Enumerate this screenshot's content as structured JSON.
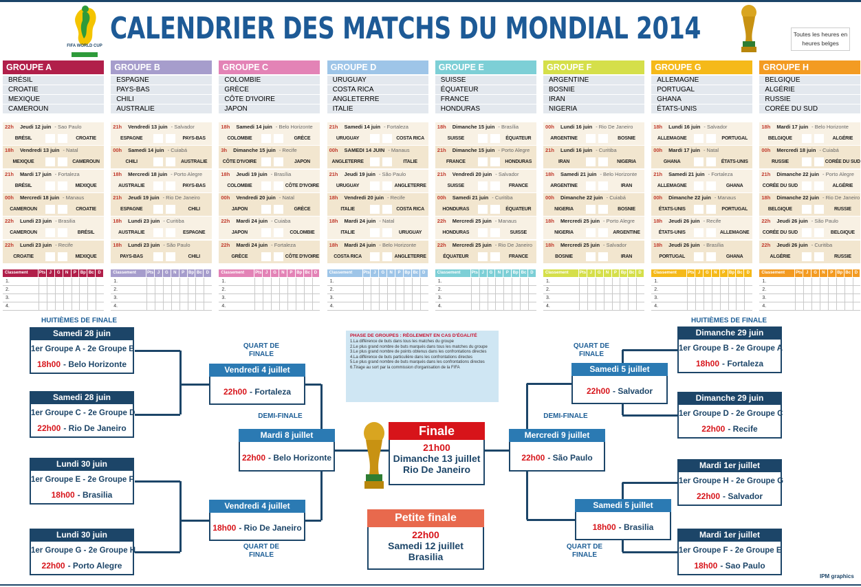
{
  "header": {
    "logo": "FIFA WORLD CUP",
    "title": "CALENDRIER DES MATCHS DU MONDIAL 2014",
    "note": "Toutes les heures en heures belges"
  },
  "standings_header": [
    "Classement",
    "Pts",
    "J",
    "G",
    "N",
    "P",
    "Bp",
    "Bc",
    "D"
  ],
  "ranks": [
    "1.",
    "2.",
    "3.",
    "4."
  ],
  "groups": [
    {
      "name": "GROUPE A",
      "color": "#b11f4a",
      "teams": [
        "BRÉSIL",
        "CROATIE",
        "MEXIQUE",
        "CAMEROUN"
      ],
      "matches": [
        {
          "time": "22h",
          "date": "Jeudi 12 juin",
          "venue": "- Sao Paulo",
          "home": "BRÉSIL",
          "away": "CROATIE"
        },
        {
          "time": "18h",
          "date": "Vendredi 13 juin",
          "venue": "- Natal",
          "home": "MEXIQUE",
          "away": "CAMEROUN"
        },
        {
          "time": "21h",
          "date": "Mardi 17 juin",
          "venue": "- Fortaleza",
          "home": "BRÉSIL",
          "away": "MEXIQUE"
        },
        {
          "time": "00h",
          "date": "Mercredi 18 juin",
          "venue": "- Manaus",
          "home": "CAMEROUN",
          "away": "CROATIE"
        },
        {
          "time": "22h",
          "date": "Lundi 23 juin",
          "venue": "- Brasilia",
          "home": "CAMEROUN",
          "away": "BRÉSIL"
        },
        {
          "time": "22h",
          "date": "Lundi 23 juin",
          "venue": "- Recife",
          "home": "CROATIE",
          "away": "MEXIQUE"
        }
      ]
    },
    {
      "name": "GROUPE B",
      "color": "#a69dcc",
      "teams": [
        "ESPAGNE",
        "PAYS-BAS",
        "CHILI",
        "AUSTRALIE"
      ],
      "matches": [
        {
          "time": "21h",
          "date": "Vendredi 13 juin",
          "venue": "- Salvador",
          "home": "ESPAGNE",
          "away": "PAYS-BAS"
        },
        {
          "time": "00h",
          "date": "Samedi 14 juin",
          "venue": "- Cuiabá",
          "home": "CHILI",
          "away": "AUSTRALIE"
        },
        {
          "time": "18h",
          "date": "Mercredi 18 juin",
          "venue": "- Porto Alegre",
          "home": "AUSTRALIE",
          "away": "PAYS-BAS"
        },
        {
          "time": "21h",
          "date": "Jeudi 19 juin",
          "venue": "- Rio De Janeiro",
          "home": "ESPAGNE",
          "away": "CHILI"
        },
        {
          "time": "18h",
          "date": "Lundi 23 juin",
          "venue": "- Curitiba",
          "home": "AUSTRALIE",
          "away": "ESPAGNE"
        },
        {
          "time": "18h",
          "date": "Lundi 23 juin",
          "venue": "- São Paulo",
          "home": "PAYS-BAS",
          "away": "CHILI"
        }
      ]
    },
    {
      "name": "GROUPE C",
      "color": "#e383b6",
      "teams": [
        "COLOMBIE",
        "GRÈCE",
        "CÔTE D'IVOIRE",
        "JAPON"
      ],
      "matches": [
        {
          "time": "18h",
          "date": "Samedi 14 juin",
          "venue": "- Belo Horizonte",
          "home": "COLOMBIE",
          "away": "GRÈCE"
        },
        {
          "time": "3h",
          "date": "Dimanche 15 juin",
          "venue": "- Recife",
          "home": "CÔTE D'IVOIRE",
          "away": "JAPON"
        },
        {
          "time": "18h",
          "date": "Jeudi 19 juin",
          "venue": "- Brasília",
          "home": "COLOMBIE",
          "away": "CÔTE D'IVOIRE"
        },
        {
          "time": "00h",
          "date": "Vendredi 20 juin",
          "venue": "- Natal",
          "home": "JAPON",
          "away": "GRÈCE"
        },
        {
          "time": "22h",
          "date": "Mardi 24 juin",
          "venue": "- Cuiaba",
          "home": "JAPON",
          "away": "COLOMBIE"
        },
        {
          "time": "22h",
          "date": "Mardi 24 juin",
          "venue": "- Fortaleza",
          "home": "GRÈCE",
          "away": "CÔTE D'IVOIRE"
        }
      ]
    },
    {
      "name": "GROUPE D",
      "color": "#9ec5e8",
      "teams": [
        "URUGUAY",
        "COSTA RICA",
        "ANGLETERRE",
        "ITALIE"
      ],
      "matches": [
        {
          "time": "21h",
          "date": "Samedi 14 juin",
          "venue": "- Fortaleza",
          "home": "URUGUAY",
          "away": "COSTA RICA"
        },
        {
          "time": "00h",
          "date": "SAMEDI 14 JUIN",
          "venue": "- Manaus",
          "home": "ANGLETERRE",
          "away": "ITALIE"
        },
        {
          "time": "21h",
          "date": "Jeudi 19 juin",
          "venue": "- São Paulo",
          "home": "URUGUAY",
          "away": "ANGLETERRE"
        },
        {
          "time": "18h",
          "date": "Vendredi 20 juin",
          "venue": "- Recife",
          "home": "ITALIE",
          "away": "COSTA RICA"
        },
        {
          "time": "18h",
          "date": "Mardi 24 juin",
          "venue": "- Natal",
          "home": "ITALIE",
          "away": "URUGUAY"
        },
        {
          "time": "18h",
          "date": "Mardi 24 juin",
          "venue": "- Belo Horizonte",
          "home": "COSTA RICA",
          "away": "ANGLETERRE"
        }
      ]
    },
    {
      "name": "GROUPE E",
      "color": "#7dcfd6",
      "teams": [
        "SUISSE",
        "ÉQUATEUR",
        "FRANCE",
        "HONDURAS"
      ],
      "matches": [
        {
          "time": "18h",
          "date": "Dimanche 15 juin",
          "venue": "- Brasília",
          "home": "SUISSE",
          "away": "ÉQUATEUR"
        },
        {
          "time": "21h",
          "date": "Dimanche 15 juin",
          "venue": "- Porto Alegre",
          "home": "FRANCE",
          "away": "HONDURAS"
        },
        {
          "time": "21h",
          "date": "Vendredi 20 juin",
          "venue": "- Salvador",
          "home": "SUISSE",
          "away": "FRANCE"
        },
        {
          "time": "00h",
          "date": "Samedi 21 juin",
          "venue": "- Curitiba",
          "home": "HONDURAS",
          "away": "ÉQUATEUR"
        },
        {
          "time": "22h",
          "date": "Mercredi 25 juin",
          "venue": "- Manaus",
          "home": "HONDURAS",
          "away": "SUISSE"
        },
        {
          "time": "22h",
          "date": "Mercredi 25 juin",
          "venue": "- Rio De Janeiro",
          "home": "ÉQUATEUR",
          "away": "FRANCE"
        }
      ]
    },
    {
      "name": "GROUPE F",
      "color": "#d5df4a",
      "teams": [
        "ARGENTINE",
        "BOSNIE",
        "IRAN",
        "NIGERIA"
      ],
      "matches": [
        {
          "time": "00h",
          "date": "Lundi 16 juin",
          "venue": "- Rio De Janeiro",
          "home": "ARGENTINE",
          "away": "BOSNIE"
        },
        {
          "time": "21h",
          "date": "Lundi 16 juin",
          "venue": "- Curitiba",
          "home": "IRAN",
          "away": "NIGERIA"
        },
        {
          "time": "18h",
          "date": "Samedi 21 juin",
          "venue": "- Belo Horizonte",
          "home": "ARGENTINE",
          "away": "IRAN"
        },
        {
          "time": "00h",
          "date": "Dimanche 22 juin",
          "venue": "- Cuiabá",
          "home": "NIGERIA",
          "away": "BOSNIE"
        },
        {
          "time": "18h",
          "date": "Mercredi 25 juin",
          "venue": "- Porto Alegre",
          "home": "NIGERIA",
          "away": "ARGENTINE"
        },
        {
          "time": "18h",
          "date": "Mercredi 25 juin",
          "venue": "- Salvador",
          "home": "BOSNIE",
          "away": "IRAN"
        }
      ]
    },
    {
      "name": "GROUPE G",
      "color": "#f5b919",
      "teams": [
        "ALLEMAGNE",
        "PORTUGAL",
        "GHANA",
        "ÉTATS-UNIS"
      ],
      "matches": [
        {
          "time": "18h",
          "date": "Lundi 16 juin",
          "venue": "- Salvador",
          "home": "ALLEMAGNE",
          "away": "PORTUGAL"
        },
        {
          "time": "00h",
          "date": "Mardi 17 juin",
          "venue": "- Natal",
          "home": "GHANA",
          "away": "ÉTATS-UNIS"
        },
        {
          "time": "21h",
          "date": "Samedi 21 juin",
          "venue": "- Fortaleza",
          "home": "ALLEMAGNE",
          "away": "GHANA"
        },
        {
          "time": "00h",
          "date": "Dimanche 22 juin",
          "venue": "- Manaus",
          "home": "ÉTATS-UNIS",
          "away": "PORTUGAL"
        },
        {
          "time": "18h",
          "date": "Jeudi 26 juin",
          "venue": "- Recife",
          "home": "ÉTATS-UNIS",
          "away": "ALLEMAGNE"
        },
        {
          "time": "18h",
          "date": "Jeudi 26 juin",
          "venue": "- Brasília",
          "home": "PORTUGAL",
          "away": "GHANA"
        }
      ]
    },
    {
      "name": "GROUPE H",
      "color": "#f39b22",
      "teams": [
        "BELGIQUE",
        "ALGÉRIE",
        "RUSSIE",
        "CORÉE DU SUD"
      ],
      "matches": [
        {
          "time": "18h",
          "date": "Mardi 17 juin",
          "venue": "- Belo Horizonte",
          "home": "BELGIQUE",
          "away": "ALGÉRIE"
        },
        {
          "time": "00h",
          "date": "Mercredi 18 juin",
          "venue": "- Cuiabá",
          "home": "RUSSIE",
          "away": "CORÉE DU SUD"
        },
        {
          "time": "21h",
          "date": "Dimanche 22 juin",
          "venue": "- Porto Alegre",
          "home": "CORÉE DU SUD",
          "away": "ALGÉRIE"
        },
        {
          "time": "18h",
          "date": "Dimanche 22 juin",
          "venue": "- Rio De Janeiro",
          "home": "BELGIQUE",
          "away": "RUSSIE"
        },
        {
          "time": "22h",
          "date": "Jeudi 26 juin",
          "venue": "- São Paulo",
          "home": "CORÉE DU SUD",
          "away": "BELGIQUE"
        },
        {
          "time": "22h",
          "date": "Jeudi 26 juin",
          "venue": "- Curitiba",
          "home": "ALGÉRIE",
          "away": "RUSSIE"
        }
      ]
    }
  ],
  "knockout": {
    "r16_label": "HUITIÈMES DE FINALE",
    "qf_label": "QUART DE FINALE",
    "sf_label": "DEMI-FINALE",
    "r16_left": [
      {
        "date": "Samedi 28 juin",
        "teams": "1er Groupe A - 2e Groupe B",
        "time": "18h00",
        "venue": "- Belo Horizonte"
      },
      {
        "date": "Samedi 28 juin",
        "teams": "1er Groupe C - 2e Groupe D",
        "time": "22h00",
        "venue": "- Rio De Janeiro"
      },
      {
        "date": "Lundi 30 juin",
        "teams": "1er Groupe E - 2e Groupe F",
        "time": "18h00",
        "venue": "- Brasilia"
      },
      {
        "date": "Lundi 30 juin",
        "teams": "1er Groupe G - 2e Groupe H",
        "time": "22h00",
        "venue": "- Porto Alegre"
      }
    ],
    "r16_right": [
      {
        "date": "Dimanche 29 juin",
        "teams": "1er Groupe B - 2e Groupe A",
        "time": "18h00",
        "venue": "- Fortaleza"
      },
      {
        "date": "Dimanche 29 juin",
        "teams": "1er Groupe D - 2e Groupe C",
        "time": "22h00",
        "venue": "- Recife"
      },
      {
        "date": "Mardi 1er juillet",
        "teams": "1er Groupe H - 2e Groupe G",
        "time": "22h00",
        "venue": "- Salvador"
      },
      {
        "date": "Mardi 1er juillet",
        "teams": "1er Groupe F - 2e Groupe E",
        "time": "18h00",
        "venue": "- Sao Paulo"
      }
    ],
    "qf_left": [
      {
        "date": "Vendredi 4 juillet",
        "time": "22h00",
        "venue": "- Fortaleza"
      },
      {
        "date": "Vendredi 4 juillet",
        "time": "18h00",
        "venue": "- Rio De Janeiro"
      }
    ],
    "qf_right": [
      {
        "date": "Samedi 5 juillet",
        "time": "22h00",
        "venue": "- Salvador"
      },
      {
        "date": "Samedi 5 juillet",
        "time": "18h00",
        "venue": "- Brasilia"
      }
    ],
    "sf": [
      {
        "date": "Mardi 8 juillet",
        "time": "22h00",
        "venue": "- Belo Horizonte"
      },
      {
        "date": "Mercredi 9 juillet",
        "time": "22h00",
        "venue": "- São Paulo"
      }
    ],
    "final": {
      "title": "Finale",
      "time": "21h00",
      "date": "Dimanche 13 juillet",
      "venue": "Rio De Janeiro"
    },
    "third": {
      "title": "Petite finale",
      "time": "22h00",
      "date": "Samedi 12 juillet",
      "venue": "Brasilia"
    }
  },
  "rules": {
    "title": "PHASE DE GROUPES : RÈGLEMENT EN CAS D'ÉGALITÉ",
    "items": [
      "1.La différence de buts dans tous les matches du groupe",
      "2.Le plus grand nombre de buts marqués dans tous les matches du groupe",
      "3.Le plus grand nombre de points obtenus dans les confrontations directes",
      "4.La différence de buts particulière dans les confrontations directes",
      "5.Le plus grand nombre de buts marqués dans les confrontations directes",
      "6.Tirage au sort par la commission d'organisation de la FIFA"
    ]
  },
  "footer": "IPM graphics"
}
